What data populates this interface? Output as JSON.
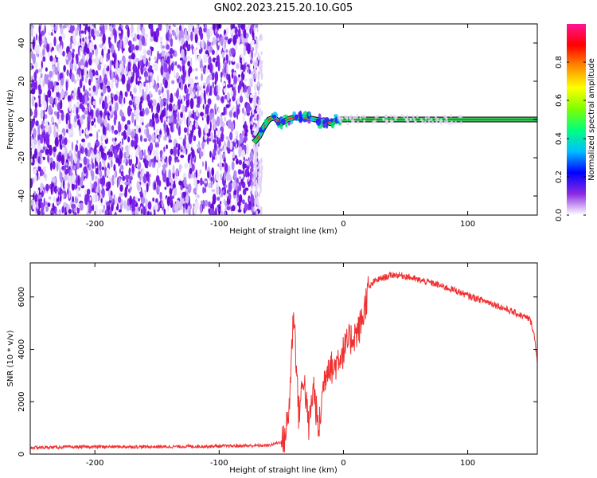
{
  "figure_title": "GN02.2023.215.20.10.G05",
  "colors": {
    "spectro_purple": "#7a1de8",
    "spectro_light": "#d9c2f5",
    "snr_line": "#f03030",
    "axis": "#000000",
    "colorbar_stops": [
      "#ffffff",
      "#8a2be2",
      "#0000ff",
      "#00bfff",
      "#00ff7f",
      "#7fff00",
      "#ffff00",
      "#ff8c00",
      "#ff0000",
      "#ff1493"
    ]
  },
  "chart_data": [
    {
      "type": "heatmap",
      "title": "",
      "xlabel": "Height of straight line (km)",
      "ylabel": "Frequency (Hz)",
      "xlim": [
        -252,
        156
      ],
      "ylim": [
        -50,
        50
      ],
      "x_ticks": [
        -200,
        -100,
        0,
        100
      ],
      "y_ticks": [
        -40,
        -20,
        0,
        20,
        40
      ],
      "noise_region": {
        "x_range": [
          -252,
          -68
        ],
        "description": "random purple noise"
      },
      "signal_track": {
        "points": [
          {
            "x": -72,
            "y": -12
          },
          {
            "x": -68,
            "y": -9
          },
          {
            "x": -64,
            "y": -4
          },
          {
            "x": -60,
            "y": 0
          },
          {
            "x": -56,
            "y": 1
          },
          {
            "x": -50,
            "y": -2
          },
          {
            "x": -45,
            "y": 0
          },
          {
            "x": -40,
            "y": 1
          },
          {
            "x": -30,
            "y": 1
          },
          {
            "x": -15,
            "y": -1
          },
          {
            "x": -10,
            "y": -2
          },
          {
            "x": -5,
            "y": 0
          },
          {
            "x": 0,
            "y": 0
          },
          {
            "x": 156,
            "y": 0
          }
        ]
      },
      "colorbar": {
        "label": "Normalized spectral amplitude",
        "range": [
          0,
          1
        ],
        "ticks": [
          "0.0",
          "0.2",
          "0.4",
          "0.6",
          "0.8"
        ]
      }
    },
    {
      "type": "line",
      "title": "",
      "xlabel": "Height of straight line (km)",
      "ylabel": "SNR (10 * v/v)",
      "xlim": [
        -252,
        156
      ],
      "ylim": [
        0,
        7300
      ],
      "x_ticks": [
        -200,
        -100,
        0,
        100
      ],
      "y_ticks": [
        0,
        2000,
        4000,
        6000
      ],
      "series": [
        {
          "color": "#f03030",
          "x": [
            -252,
            -200,
            -150,
            -100,
            -60,
            -48,
            -44,
            -40,
            -36,
            -32,
            -28,
            -24,
            -20,
            -16,
            -12,
            -8,
            -4,
            0,
            4,
            8,
            12,
            16,
            20,
            25,
            30,
            40,
            50,
            60,
            70,
            80,
            90,
            100,
            110,
            120,
            130,
            140,
            150,
            153,
            156
          ],
          "values": [
            250,
            280,
            280,
            300,
            330,
            500,
            1500,
            5600,
            1500,
            3000,
            1000,
            2600,
            800,
            2700,
            3500,
            3200,
            3700,
            3900,
            4300,
            4500,
            4700,
            5300,
            6300,
            6600,
            6700,
            6850,
            6800,
            6650,
            6550,
            6400,
            6250,
            6050,
            5900,
            5750,
            5550,
            5350,
            5150,
            4700,
            3600
          ]
        }
      ]
    }
  ]
}
